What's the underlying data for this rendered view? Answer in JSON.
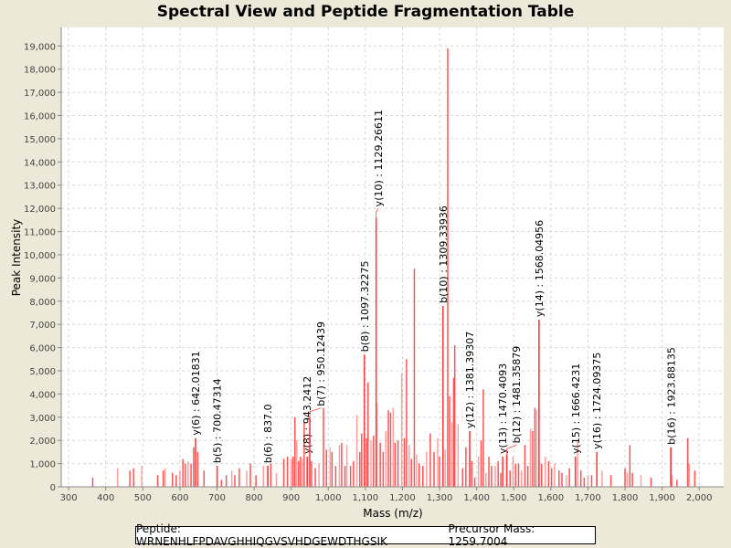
{
  "chart_data": {
    "type": "bar",
    "title": "Spectral View and Peptide Fragmentation Table",
    "xlabel": "Mass (m/z)",
    "ylabel": "Peak Intensity",
    "xlim": [
      280,
      2066
    ],
    "ylim": [
      0,
      19800
    ],
    "grid": true,
    "xticks": [
      300,
      400,
      500,
      600,
      700,
      800,
      900,
      1000,
      1100,
      1200,
      1300,
      1400,
      1500,
      1600,
      1700,
      1800,
      1900,
      2000
    ],
    "xtick_labels": [
      "300",
      "400",
      "500",
      "600",
      "700",
      "800",
      "900",
      "1,000",
      "1,100",
      "1,200",
      "1,300",
      "1,400",
      "1,500",
      "1,600",
      "1,700",
      "1,800",
      "1,900",
      "2,000"
    ],
    "yticks": [
      0,
      1000,
      2000,
      3000,
      4000,
      5000,
      6000,
      7000,
      8000,
      9000,
      10000,
      11000,
      12000,
      13000,
      14000,
      15000,
      16000,
      17000,
      18000,
      19000
    ],
    "ytick_labels": [
      "0",
      "1,000",
      "2,000",
      "3,000",
      "4,000",
      "5,000",
      "6,000",
      "7,000",
      "8,000",
      "9,000",
      "10,000",
      "11,000",
      "12,000",
      "13,000",
      "14,000",
      "15,000",
      "16,000",
      "17,000",
      "18,000",
      "19,000"
    ],
    "series_color": "#ff4040",
    "peaks": [
      [
        365,
        400
      ],
      [
        432,
        800
      ],
      [
        465,
        700
      ],
      [
        475,
        800
      ],
      [
        497,
        900
      ],
      [
        540,
        500
      ],
      [
        555,
        700
      ],
      [
        560,
        800
      ],
      [
        580,
        600
      ],
      [
        590,
        500
      ],
      [
        600,
        700
      ],
      [
        608,
        1200
      ],
      [
        615,
        1000
      ],
      [
        622,
        1100
      ],
      [
        630,
        1000
      ],
      [
        637,
        1700
      ],
      [
        642,
        2100
      ],
      [
        648,
        1500
      ],
      [
        665,
        700
      ],
      [
        700,
        900
      ],
      [
        712,
        300
      ],
      [
        725,
        500
      ],
      [
        740,
        700
      ],
      [
        748,
        500
      ],
      [
        760,
        800
      ],
      [
        780,
        700
      ],
      [
        790,
        1000
      ],
      [
        805,
        500
      ],
      [
        825,
        900
      ],
      [
        837,
        900
      ],
      [
        845,
        1000
      ],
      [
        860,
        600
      ],
      [
        880,
        1200
      ],
      [
        890,
        1300
      ],
      [
        900,
        1200
      ],
      [
        905,
        1300
      ],
      [
        910,
        3000
      ],
      [
        915,
        2000
      ],
      [
        920,
        1100
      ],
      [
        925,
        1300
      ],
      [
        930,
        1200
      ],
      [
        935,
        2800
      ],
      [
        943,
        1300
      ],
      [
        950,
        3000
      ],
      [
        955,
        1100
      ],
      [
        965,
        800
      ],
      [
        975,
        1000
      ],
      [
        987,
        3400
      ],
      [
        995,
        1600
      ],
      [
        1005,
        1700
      ],
      [
        1010,
        1500
      ],
      [
        1020,
        900
      ],
      [
        1030,
        1800
      ],
      [
        1036,
        1900
      ],
      [
        1045,
        900
      ],
      [
        1050,
        1800
      ],
      [
        1060,
        900
      ],
      [
        1068,
        1100
      ],
      [
        1077,
        3100
      ],
      [
        1085,
        1500
      ],
      [
        1090,
        2300
      ],
      [
        1097,
        5700
      ],
      [
        1103,
        2100
      ],
      [
        1107,
        4500
      ],
      [
        1115,
        2000
      ],
      [
        1122,
        2200
      ],
      [
        1129,
        11600
      ],
      [
        1131,
        3600
      ],
      [
        1140,
        1900
      ],
      [
        1148,
        1500
      ],
      [
        1155,
        2400
      ],
      [
        1162,
        3300
      ],
      [
        1168,
        3200
      ],
      [
        1175,
        3400
      ],
      [
        1180,
        1900
      ],
      [
        1188,
        2000
      ],
      [
        1198,
        4900
      ],
      [
        1205,
        2100
      ],
      [
        1211,
        5500
      ],
      [
        1218,
        1800
      ],
      [
        1224,
        1200
      ],
      [
        1232,
        9400
      ],
      [
        1238,
        1400
      ],
      [
        1245,
        1000
      ],
      [
        1255,
        900
      ],
      [
        1265,
        1500
      ],
      [
        1275,
        2300
      ],
      [
        1285,
        1500
      ],
      [
        1295,
        2100
      ],
      [
        1300,
        1300
      ],
      [
        1309,
        7800
      ],
      [
        1315,
        1600
      ],
      [
        1322,
        18900
      ],
      [
        1327,
        3900
      ],
      [
        1333,
        2800
      ],
      [
        1338,
        4700
      ],
      [
        1341,
        6100
      ],
      [
        1350,
        2700
      ],
      [
        1362,
        800
      ],
      [
        1371,
        1700
      ],
      [
        1381,
        2400
      ],
      [
        1387,
        1100
      ],
      [
        1395,
        400
      ],
      [
        1405,
        1300
      ],
      [
        1412,
        2000
      ],
      [
        1418,
        4200
      ],
      [
        1425,
        600
      ],
      [
        1433,
        1300
      ],
      [
        1440,
        900
      ],
      [
        1450,
        900
      ],
      [
        1458,
        1100
      ],
      [
        1465,
        600
      ],
      [
        1470,
        1300
      ],
      [
        1481,
        1400
      ],
      [
        1490,
        700
      ],
      [
        1498,
        1300
      ],
      [
        1505,
        1000
      ],
      [
        1513,
        1000
      ],
      [
        1521,
        700
      ],
      [
        1530,
        1800
      ],
      [
        1538,
        900
      ],
      [
        1545,
        2500
      ],
      [
        1551,
        2400
      ],
      [
        1557,
        3400
      ],
      [
        1562,
        3300
      ],
      [
        1568,
        7200
      ],
      [
        1575,
        1000
      ],
      [
        1585,
        1300
      ],
      [
        1594,
        1100
      ],
      [
        1602,
        800
      ],
      [
        1610,
        1000
      ],
      [
        1622,
        700
      ],
      [
        1630,
        600
      ],
      [
        1642,
        500
      ],
      [
        1650,
        800
      ],
      [
        1666,
        1300
      ],
      [
        1672,
        2000
      ],
      [
        1681,
        700
      ],
      [
        1690,
        400
      ],
      [
        1700,
        500
      ],
      [
        1710,
        500
      ],
      [
        1724,
        1500
      ],
      [
        1738,
        700
      ],
      [
        1762,
        500
      ],
      [
        1800,
        800
      ],
      [
        1806,
        600
      ],
      [
        1813,
        1800
      ],
      [
        1820,
        600
      ],
      [
        1843,
        500
      ],
      [
        1870,
        400
      ],
      [
        1923,
        1700
      ],
      [
        1927,
        500
      ],
      [
        1940,
        300
      ],
      [
        1969,
        2100
      ],
      [
        1973,
        1000
      ],
      [
        1988,
        700
      ]
    ],
    "annotations": [
      {
        "mz": 642.01831,
        "intensity": 2100,
        "label": "y(6) : 642.01831"
      },
      {
        "mz": 700.47314,
        "intensity": 900,
        "label": "b(5) : 700.47314"
      },
      {
        "mz": 837.0,
        "intensity": 900,
        "label": "b(6) : 837.0"
      },
      {
        "mz": 943.2412,
        "intensity": 1300,
        "label": "y(8) : 943.2412"
      },
      {
        "mz": 950.12439,
        "intensity": 3000,
        "label": "b(7) : 950.12439"
      },
      {
        "mz": 1097.32275,
        "intensity": 5700,
        "label": "b(8) : 1097.32275"
      },
      {
        "mz": 1129.26611,
        "intensity": 11600,
        "label": "y(10) : 1129.26611"
      },
      {
        "mz": 1309.33936,
        "intensity": 7800,
        "label": "b(10) : 1309.33936"
      },
      {
        "mz": 1381.39307,
        "intensity": 2400,
        "label": "y(12) : 1381.39307"
      },
      {
        "mz": 1470.4093,
        "intensity": 1300,
        "label": "y(13) : 1470.4093"
      },
      {
        "mz": 1481.35879,
        "intensity": 1400,
        "label": "b(12) : 1481.35879"
      },
      {
        "mz": 1568.04956,
        "intensity": 7200,
        "label": "y(14) : 1568.04956"
      },
      {
        "mz": 1666.4231,
        "intensity": 1300,
        "label": "y(15) : 1666.4231"
      },
      {
        "mz": 1724.09375,
        "intensity": 1500,
        "label": "y(16) : 1724.09375"
      },
      {
        "mz": 1923.88135,
        "intensity": 1700,
        "label": "b(16) : 1923.88135"
      }
    ]
  },
  "footer": {
    "peptide": "Peptide: WRNENHLFPDAVGHHIQGVSVHDGEWDTHGSIK",
    "precursor": "Precursor Mass: 1259.7004"
  }
}
